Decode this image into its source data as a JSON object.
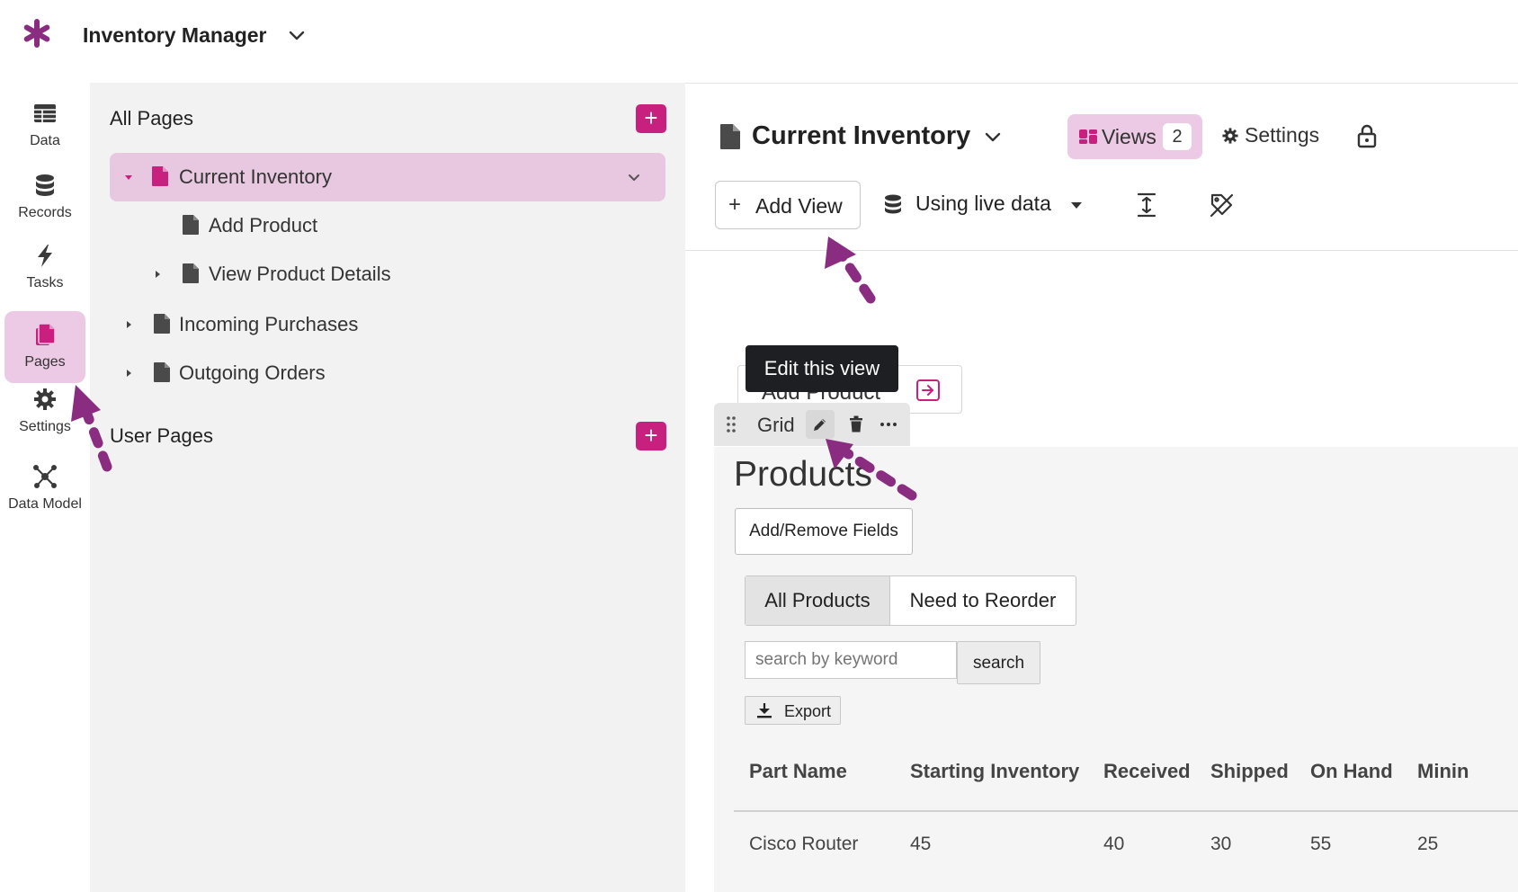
{
  "app": {
    "title": "Inventory Manager",
    "accent_color": "#8a2d80",
    "highlight_color": "#c7207e"
  },
  "leftnav": {
    "items": [
      {
        "label": "Data",
        "icon": "table-icon"
      },
      {
        "label": "Records",
        "icon": "database-icon"
      },
      {
        "label": "Tasks",
        "icon": "lightning-icon"
      },
      {
        "label": "Pages",
        "icon": "pages-icon",
        "active": true
      },
      {
        "label": "Settings",
        "icon": "gear-icon"
      },
      {
        "label": "Data Model",
        "icon": "network-icon"
      }
    ]
  },
  "pages_panel": {
    "all_pages_title": "All Pages",
    "user_pages_title": "User Pages",
    "add_icon": "+",
    "pages": [
      {
        "label": "Current Inventory",
        "selected": true,
        "expanded": true
      },
      {
        "label": "Add Product"
      },
      {
        "label": "View Product Details"
      },
      {
        "label": "Incoming Purchases"
      },
      {
        "label": "Outgoing Orders"
      }
    ]
  },
  "view_header": {
    "title": "Current Inventory",
    "views_label": "Views",
    "views_count": "2",
    "settings_label": "Settings",
    "add_view_label": "Add View",
    "add_view_plus": "+",
    "live_data_label": "Using live data"
  },
  "canvas": {
    "component_text": "Add Product",
    "tooltip": "Edit this view",
    "grid_label": "Grid",
    "products_title": "Products",
    "fields_button": "Add/Remove Fields",
    "tabs": [
      "All Products",
      "Need to Reorder"
    ],
    "active_tab": "All Products",
    "search_placeholder": "search by keyword",
    "search_button": "search",
    "export_label": "Export"
  },
  "table": {
    "columns": [
      "Part Name",
      "Starting Inventory",
      "Received",
      "Shipped",
      "On Hand",
      "Minin"
    ],
    "rows": [
      [
        "Cisco Router",
        "45",
        "40",
        "30",
        "55",
        "25"
      ]
    ]
  }
}
